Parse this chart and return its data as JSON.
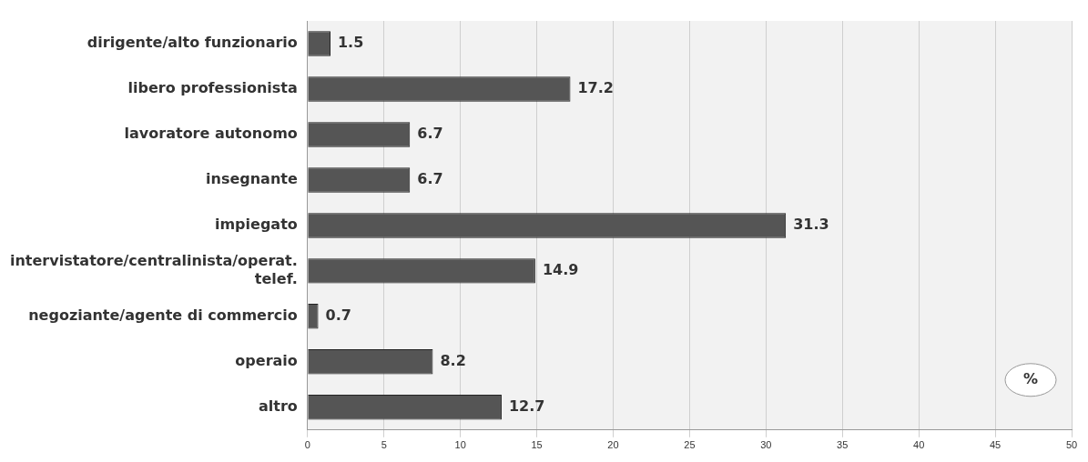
{
  "chart_data": {
    "type": "bar",
    "orientation": "horizontal",
    "categories": [
      "dirigente/alto funzionario",
      "libero professionista",
      "lavoratore autonomo",
      "insegnante",
      "impiegato",
      "intervistatore/centralinista/operat. telef.",
      "negoziante/agente di commercio",
      "operaio",
      "altro"
    ],
    "values": [
      1.5,
      17.2,
      6.7,
      6.7,
      31.3,
      14.9,
      0.7,
      8.2,
      12.7
    ],
    "color": "#555555",
    "xlim": [
      0,
      50
    ],
    "xticks": [
      0,
      5,
      10,
      15,
      20,
      25,
      30,
      35,
      40,
      45,
      50
    ],
    "grid": "x",
    "data_labels": true,
    "legend": false,
    "annotations": [
      "%"
    ]
  }
}
